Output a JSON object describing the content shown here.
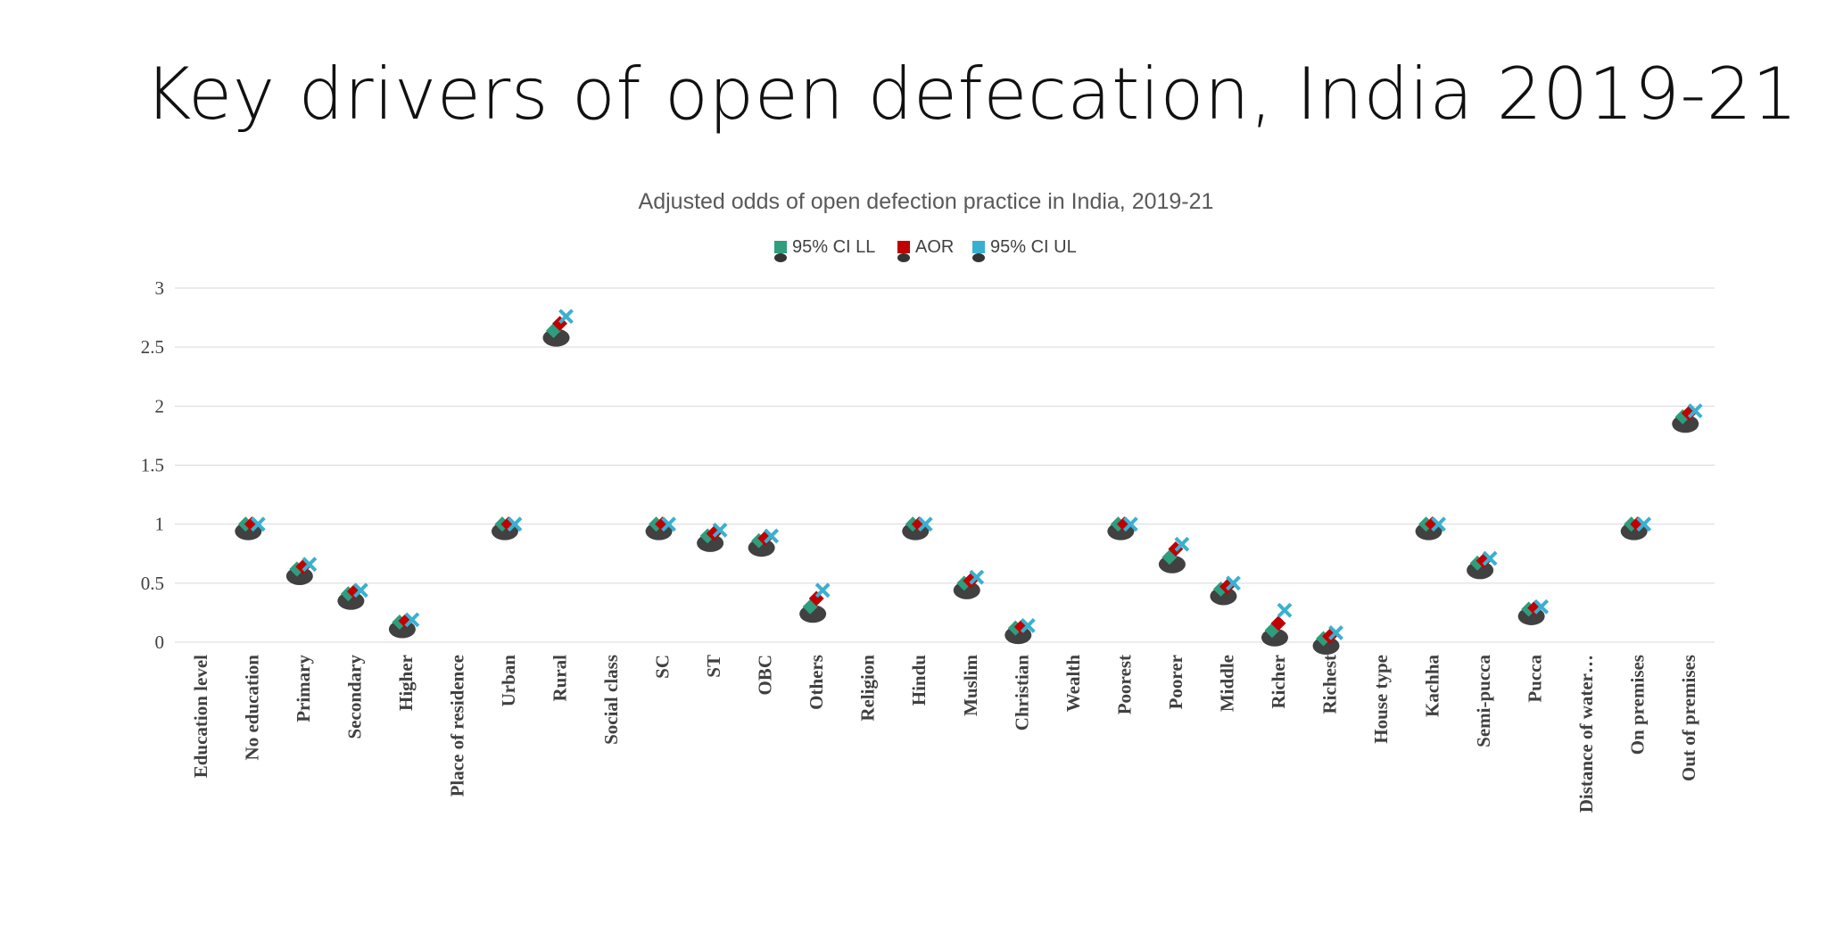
{
  "slide": {
    "title": "Key drivers of open defecation, India 2019-21"
  },
  "colors": {
    "ci_ll": "#2e9e7e",
    "aor": "#c00000",
    "ci_ul": "#3ab0d0",
    "shadow": "#111111",
    "grid": "#d9d9d9"
  },
  "chart_data": {
    "type": "scatter",
    "title": "Adjusted odds of open defection practice in India, 2019-21",
    "xlabel": "",
    "ylabel": "",
    "ylim": [
      0,
      3
    ],
    "yticks": [
      0,
      0.5,
      1,
      1.5,
      2,
      2.5,
      3
    ],
    "grid": true,
    "legend_position": "top-center",
    "categories": [
      "Education level",
      "No education",
      "Primary",
      "Secondary",
      "Higher",
      "Place of residence",
      "Urban",
      "Rural",
      "Social class",
      "SC",
      "ST",
      "OBC",
      "Others",
      "Religion",
      "Hindu",
      "Muslim",
      "Christian",
      "Wealth",
      "Poorest",
      "Poorer",
      "Middle",
      "Richer",
      "Richest",
      "House type",
      "Kachha",
      "Semi-pucca",
      "Pucca",
      "Distance of water…",
      "On premises",
      "Out of premises"
    ],
    "series": [
      {
        "name": "95% CI LL",
        "marker": "square",
        "values": [
          null,
          1,
          0.62,
          0.41,
          0.17,
          null,
          1,
          2.64,
          null,
          1,
          0.9,
          0.86,
          0.3,
          null,
          1,
          0.5,
          0.12,
          null,
          1,
          0.72,
          0.45,
          0.1,
          0.03,
          null,
          1,
          0.67,
          0.28,
          null,
          1,
          1.91
        ]
      },
      {
        "name": "AOR",
        "marker": "square",
        "values": [
          null,
          1,
          0.64,
          0.43,
          0.18,
          null,
          1,
          2.7,
          null,
          1,
          0.92,
          0.88,
          0.37,
          null,
          1,
          0.52,
          0.13,
          null,
          1,
          0.79,
          0.47,
          0.16,
          0.05,
          null,
          1,
          0.69,
          0.29,
          null,
          1,
          1.94
        ]
      },
      {
        "name": "95% CI UL",
        "marker": "x",
        "values": [
          null,
          1,
          0.66,
          0.44,
          0.19,
          null,
          1,
          2.76,
          null,
          1,
          0.95,
          0.9,
          0.44,
          null,
          1,
          0.55,
          0.14,
          null,
          1,
          0.83,
          0.5,
          0.27,
          0.08,
          null,
          1,
          0.71,
          0.3,
          null,
          1,
          1.96
        ]
      }
    ]
  }
}
